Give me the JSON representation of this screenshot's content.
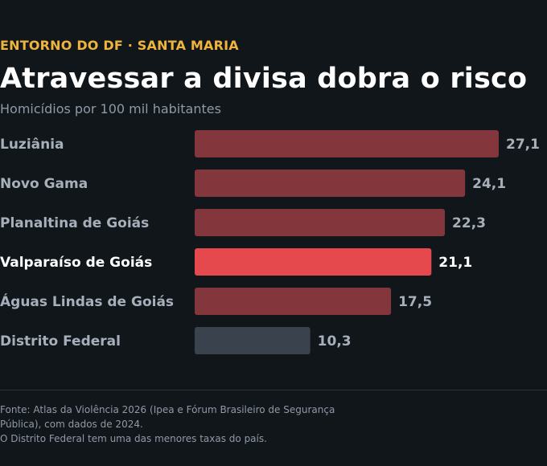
{
  "header": {
    "kicker": "ENTORNO DO DF · SANTA MARIA",
    "title": "Atravessar a divisa dobra o risco",
    "subtitle": "Homicídios por 100 mil habitantes"
  },
  "chart_data": {
    "type": "bar",
    "orientation": "horizontal",
    "categories": [
      "Luziânia",
      "Novo Gama",
      "Planaltina de Goiás",
      "Valparaíso de Goiás",
      "Águas Lindas de Goiás",
      "Distrito Federal"
    ],
    "values": [
      27.1,
      24.1,
      22.3,
      21.1,
      17.5,
      10.3
    ],
    "value_labels": [
      "27,1",
      "24,1",
      "22,3",
      "21,1",
      "17,5",
      "10,3"
    ],
    "highlight": "Valparaíso de Goiás",
    "baseline": "Distrito Federal",
    "xlim": [
      0,
      27.1
    ],
    "grid": false,
    "colors": {
      "default": "#83363c",
      "highlight": "#e5484d",
      "baseline": "#3a434d",
      "label_default": "#a7b0ba",
      "label_highlight": "#ffffff"
    }
  },
  "footer": {
    "source": "Fonte: Atlas da Violência 2026 (Ipea e Fórum Brasileiro de Segurança Pública), com dados de 2024.",
    "note": "O Distrito Federal tem uma das menores taxas do país."
  }
}
